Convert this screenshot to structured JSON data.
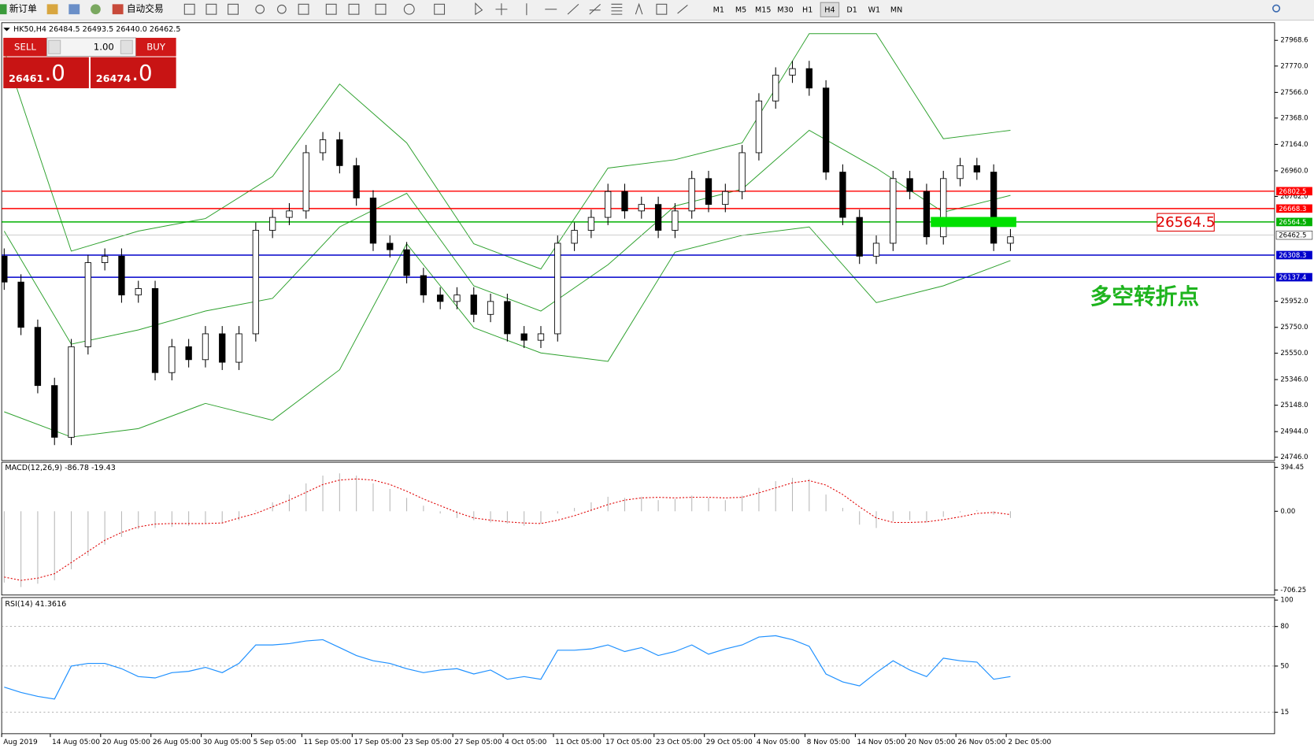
{
  "toolbar": {
    "new_order": "新订单",
    "auto_trading": "自动交易",
    "timeframes": [
      "M1",
      "M5",
      "M15",
      "M30",
      "H1",
      "H4",
      "D1",
      "W1",
      "MN"
    ],
    "active_timeframe": "H4"
  },
  "trade_panel": {
    "sell": "SELL",
    "buy": "BUY",
    "lots": "1.00",
    "bid": "26461",
    "bid_frac": ".0",
    "ask": "26474",
    "ask_frac": ".0"
  },
  "chart": {
    "header": "HK50,H4 26484.5 26493.5 26440.0 26462.5",
    "ylim": [
      24746.0,
      27968.6
    ],
    "yticks": [
      27968.6,
      {
        "value": 27770,
        "label": "27770.0"
      },
      {
        "value": 27566,
        "label": "27566.0"
      },
      {
        "value": 27368,
        "label": "27368.0"
      },
      {
        "value": 27164,
        "label": "27164.0"
      },
      {
        "value": 26960,
        "label": "26960.0"
      },
      {
        "value": 26762,
        "label": "26762.0"
      },
      {
        "value": 25952,
        "label": "25952.0"
      },
      {
        "value": 25750,
        "label": "25750.0"
      },
      {
        "value": 25550,
        "label": "25550.0"
      },
      {
        "value": 25346,
        "label": "25346.0"
      },
      {
        "value": 25148,
        "label": "25148.0"
      },
      {
        "value": 24944,
        "label": "24944.0"
      },
      {
        "value": 24746,
        "label": "24746.0"
      }
    ],
    "open": [
      26300,
      26100,
      25750,
      25300,
      24900,
      25600,
      26250,
      26300,
      26000,
      26050,
      25400,
      25600,
      25500,
      25700,
      25480,
      25700,
      26500,
      26600,
      26650,
      27100,
      27200,
      27000,
      26750,
      26400,
      26350,
      26150,
      26000,
      25950,
      26000,
      25850,
      25950,
      25700,
      25650,
      25700,
      26400,
      26500,
      26600,
      26800,
      26650,
      26700,
      26500,
      26650,
      26900,
      26700,
      26800,
      27100,
      27500,
      27700,
      27750,
      27600,
      26950,
      26600,
      26300,
      26400,
      26900,
      26800,
      26450,
      26900,
      27000,
      26950,
      26400
    ],
    "high": [
      26360,
      26160,
      25810,
      25360,
      25660,
      26310,
      26360,
      26360,
      26110,
      26110,
      25660,
      25660,
      25760,
      25760,
      25760,
      26560,
      26660,
      26710,
      27160,
      27260,
      27260,
      27060,
      26810,
      26460,
      26410,
      26210,
      26060,
      26060,
      26060,
      26010,
      26010,
      25760,
      25760,
      26460,
      26560,
      26660,
      26860,
      26860,
      26760,
      26760,
      26710,
      26960,
      26960,
      26860,
      27160,
      27560,
      27760,
      27810,
      27810,
      27660,
      27010,
      26660,
      26460,
      26960,
      26960,
      26860,
      26960,
      27060,
      27060,
      27010,
      26510
    ],
    "low": [
      26040,
      25690,
      25240,
      24840,
      24840,
      25540,
      26190,
      25940,
      25940,
      25340,
      25340,
      25440,
      25440,
      25420,
      25420,
      25640,
      26440,
      26540,
      26590,
      27040,
      26940,
      26690,
      26340,
      26290,
      26090,
      25940,
      25890,
      25890,
      25790,
      25790,
      25640,
      25590,
      25590,
      25640,
      26340,
      26440,
      26540,
      26590,
      26590,
      26440,
      26440,
      26590,
      26640,
      26640,
      26740,
      27040,
      27440,
      27640,
      27540,
      26890,
      26540,
      26240,
      26240,
      26340,
      26740,
      26390,
      26390,
      26840,
      26890,
      26340,
      26340
    ],
    "close": [
      26100,
      25750,
      25300,
      24900,
      25600,
      26250,
      26300,
      26000,
      26050,
      25400,
      25600,
      25500,
      25700,
      25480,
      25700,
      26500,
      26600,
      26650,
      27100,
      27200,
      27000,
      26750,
      26400,
      26350,
      26150,
      26000,
      25950,
      26000,
      25850,
      25950,
      25700,
      25650,
      25700,
      26400,
      26500,
      26600,
      26800,
      26650,
      26700,
      26500,
      26650,
      26900,
      26700,
      26800,
      27100,
      27500,
      27700,
      27750,
      27600,
      26950,
      26600,
      26300,
      26400,
      26900,
      26800,
      26450,
      26900,
      27000,
      26950,
      26400,
      26450
    ],
    "bands": {
      "color": "#2ca02c",
      "x": [
        0,
        4,
        8,
        12,
        16,
        20,
        24,
        28,
        32,
        36,
        40,
        44,
        48,
        52,
        56,
        60
      ],
      "upper": [
        27891,
        26339,
        26494,
        26591,
        26916,
        27631,
        27176,
        26396,
        26201,
        26981,
        27046,
        27176,
        28020,
        28020,
        27208,
        27273
      ],
      "middle": [
        26494,
        25620,
        25730,
        25876,
        25974,
        26526,
        26786,
        26071,
        25876,
        26234,
        26688,
        26818,
        27273,
        26980,
        26640,
        26770
      ],
      "lower": [
        25097,
        24902,
        24967,
        25162,
        25032,
        25422,
        26396,
        25747,
        25552,
        25487,
        26331,
        26461,
        26526,
        25941,
        26071,
        26266
      ]
    },
    "price_lines": [
      {
        "value": 26802.5,
        "color": "#ff0000"
      },
      {
        "value": 26668.3,
        "color": "#ff0000"
      },
      {
        "value": 26564.5,
        "color": "#00b000"
      },
      {
        "value": 26462.5,
        "color": "#b0b0b0"
      },
      {
        "value": 26308.3,
        "color": "#0000cc"
      },
      {
        "value": 26137.4,
        "color": "#0000cc"
      }
    ],
    "annotation": {
      "value": 26564.5,
      "note": "多空转折点"
    }
  },
  "macd": {
    "label": "MACD(12,26,9) -86.78 -19.43",
    "ylim": [
      -706.25,
      394.45
    ],
    "yticks": [
      394.45,
      {
        "value": 0,
        "label": "0.00"
      },
      -706.25
    ],
    "main": [
      -640,
      -680,
      -650,
      -620,
      -520,
      -400,
      -300,
      -230,
      -160,
      -150,
      -140,
      -130,
      -110,
      -110,
      -80,
      10,
      80,
      150,
      250,
      320,
      340,
      320,
      250,
      200,
      120,
      50,
      -20,
      -60,
      -80,
      -100,
      -110,
      -130,
      -110,
      -20,
      30,
      80,
      130,
      120,
      130,
      100,
      110,
      140,
      120,
      100,
      140,
      210,
      270,
      300,
      290,
      150,
      30,
      -120,
      -150,
      -90,
      -80,
      -100,
      -50,
      -10,
      10,
      -30,
      -60
    ],
    "signal": [
      -590,
      -620,
      -600,
      -560,
      -460,
      -360,
      -260,
      -190,
      -140,
      -115,
      -110,
      -110,
      -110,
      -105,
      -60,
      -20,
      40,
      100,
      170,
      240,
      280,
      290,
      280,
      240,
      180,
      110,
      50,
      -10,
      -60,
      -80,
      -95,
      -105,
      -110,
      -80,
      -40,
      10,
      60,
      100,
      120,
      125,
      120,
      125,
      125,
      120,
      125,
      165,
      210,
      255,
      275,
      235,
      150,
      40,
      -60,
      -100,
      -100,
      -95,
      -75,
      -50,
      -20,
      -10,
      -30
    ]
  },
  "rsi": {
    "label": "RSI(14) 41.3616",
    "ylim": [
      0,
      100
    ],
    "yticks": [
      100,
      80,
      50,
      15
    ],
    "values": [
      34,
      30,
      27,
      25,
      50,
      52,
      52,
      48,
      42,
      41,
      45,
      46,
      49,
      45,
      52,
      66,
      66,
      67,
      69,
      70,
      64,
      58,
      54,
      52,
      48,
      45,
      47,
      48,
      44,
      47,
      40,
      42,
      40,
      62,
      62,
      63,
      66,
      61,
      64,
      58,
      61,
      66,
      59,
      63,
      66,
      72,
      73,
      70,
      65,
      44,
      38,
      35,
      45,
      54,
      47,
      42,
      56,
      54,
      53,
      40,
      42
    ]
  },
  "dates": [
    "Aug 2019",
    "14 Aug 05:00",
    "20 Aug 05:00",
    "26 Aug 05:00",
    "30 Aug 05:00",
    "5 Sep 05:00",
    "11 Sep 05:00",
    "17 Sep 05:00",
    "23 Sep 05:00",
    "27 Sep 05:00",
    "4 Oct 05:00",
    "11 Oct 05:00",
    "17 Oct 05:00",
    "23 Oct 05:00",
    "29 Oct 05:00",
    "4 Nov 05:00",
    "8 Nov 05:00",
    "14 Nov 05:00",
    "20 Nov 05:00",
    "26 Nov 05:00",
    "2 Dec 05:00"
  ]
}
